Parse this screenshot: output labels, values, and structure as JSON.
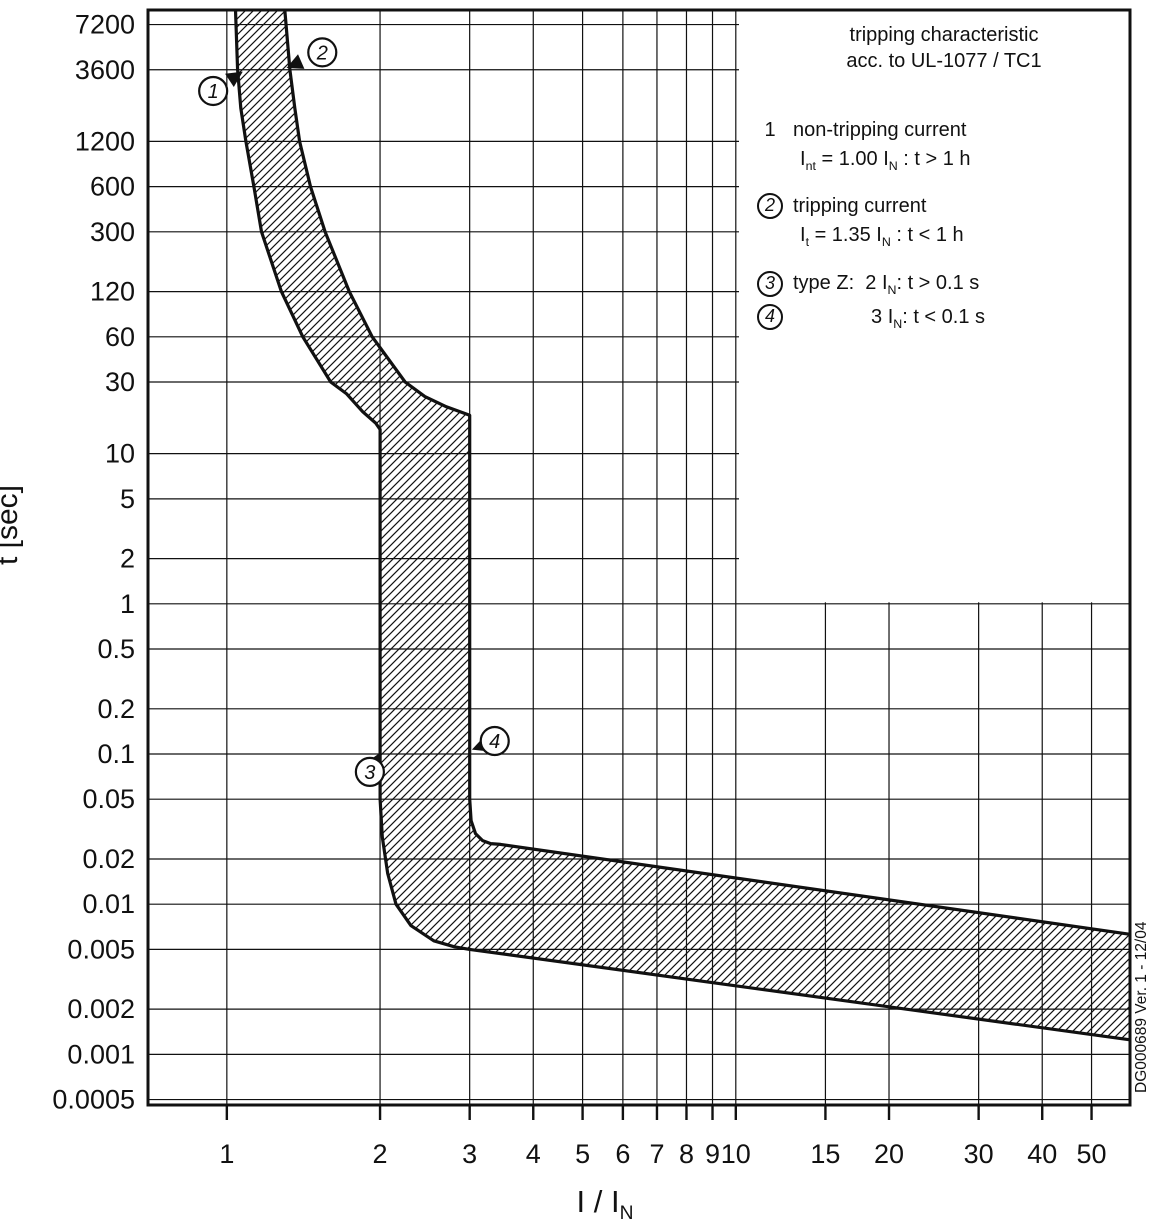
{
  "chart_data": {
    "type": "area",
    "title": "tripping characteristic acc. to UL-1077 / TC1",
    "xlabel": "I / IN",
    "ylabel": "t [sec]",
    "grid": true,
    "x_axis": {
      "scale": "log",
      "range": [
        0.7,
        59.5
      ],
      "label_segments": [
        {
          "t": "I / "
        },
        {
          "t": "I"
        },
        {
          "t": "N",
          "sub": true
        }
      ],
      "ticks": [
        {
          "v": 1,
          "label": "1"
        },
        {
          "v": 2,
          "label": "2"
        },
        {
          "v": 3,
          "label": "3"
        },
        {
          "v": 4,
          "label": "4"
        },
        {
          "v": 5,
          "label": "5"
        },
        {
          "v": 6,
          "label": "6"
        },
        {
          "v": 7,
          "label": "7"
        },
        {
          "v": 8,
          "label": "8"
        },
        {
          "v": 9,
          "label": "9"
        },
        {
          "v": 10,
          "label": "10"
        },
        {
          "v": 15,
          "label": "15"
        },
        {
          "v": 20,
          "label": "20"
        },
        {
          "v": 30,
          "label": "30"
        },
        {
          "v": 40,
          "label": "40"
        },
        {
          "v": 50,
          "label": "50"
        }
      ]
    },
    "y_axis": {
      "scale": "log",
      "range": [
        0.00046,
        9000
      ],
      "label": "t [sec]",
      "ticks": [
        {
          "v": 7200,
          "label": "7200"
        },
        {
          "v": 3600,
          "label": "3600"
        },
        {
          "v": 1200,
          "label": "1200"
        },
        {
          "v": 600,
          "label": "600"
        },
        {
          "v": 300,
          "label": "300"
        },
        {
          "v": 120,
          "label": "120"
        },
        {
          "v": 60,
          "label": "60"
        },
        {
          "v": 30,
          "label": "30"
        },
        {
          "v": 10,
          "label": "10"
        },
        {
          "v": 5,
          "label": "5"
        },
        {
          "v": 2,
          "label": "2"
        },
        {
          "v": 1,
          "label": "1"
        },
        {
          "v": 0.5,
          "label": "0.5"
        },
        {
          "v": 0.2,
          "label": "0.2"
        },
        {
          "v": 0.1,
          "label": "0.1"
        },
        {
          "v": 0.05,
          "label": "0.05"
        },
        {
          "v": 0.02,
          "label": "0.02"
        },
        {
          "v": 0.01,
          "label": "0.01"
        },
        {
          "v": 0.005,
          "label": "0.005"
        },
        {
          "v": 0.002,
          "label": "0.002"
        },
        {
          "v": 0.001,
          "label": "0.001"
        },
        {
          "v": 0.0005,
          "label": "0.0005"
        }
      ]
    },
    "band": {
      "name": "type-Z tripping band",
      "hatch": "diagonal",
      "curve1": {
        "name": "non-tripping boundary (curve 1)",
        "points": [
          [
            1.04,
            9000
          ],
          [
            1.05,
            3600
          ],
          [
            1.065,
            2000
          ],
          [
            1.09,
            1200
          ],
          [
            1.13,
            600
          ],
          [
            1.17,
            300
          ],
          [
            1.28,
            120
          ],
          [
            1.41,
            60
          ],
          [
            1.6,
            30
          ],
          [
            1.72,
            25
          ],
          [
            1.85,
            19
          ],
          [
            1.96,
            16
          ],
          [
            2.0,
            14.5
          ],
          [
            2.0,
            0.05
          ],
          [
            2.02,
            0.028
          ],
          [
            2.07,
            0.016
          ],
          [
            2.15,
            0.01
          ],
          [
            2.3,
            0.0072
          ],
          [
            2.55,
            0.0057
          ],
          [
            2.8,
            0.0052
          ],
          [
            3.0,
            0.005
          ],
          [
            59.5,
            0.00125
          ]
        ]
      },
      "curve2": {
        "name": "tripping boundary (curve 2)",
        "points": [
          [
            1.3,
            9000
          ],
          [
            1.33,
            3600
          ],
          [
            1.36,
            2000
          ],
          [
            1.39,
            1200
          ],
          [
            1.46,
            600
          ],
          [
            1.56,
            300
          ],
          [
            1.74,
            120
          ],
          [
            1.93,
            60
          ],
          [
            2.24,
            30
          ],
          [
            2.45,
            24
          ],
          [
            2.7,
            20.5
          ],
          [
            2.9,
            18.8
          ],
          [
            3.0,
            18
          ],
          [
            3.0,
            0.05
          ],
          [
            3.02,
            0.036
          ],
          [
            3.08,
            0.0295
          ],
          [
            3.18,
            0.0265
          ],
          [
            3.3,
            0.0253
          ],
          [
            3.45,
            0.025
          ],
          [
            59.5,
            0.0063
          ]
        ]
      }
    },
    "markers": [
      {
        "label": "1",
        "x": 0.94,
        "t": 2600,
        "tip_x": 1.075,
        "tip_t": 3500
      },
      {
        "label": "2",
        "x": 1.54,
        "t": 4700,
        "tip_x": 1.31,
        "tip_t": 3700
      },
      {
        "label": "3",
        "x": 1.91,
        "t": 0.076,
        "tip_x": 2.0,
        "tip_t": 0.102
      },
      {
        "label": "4",
        "x": 3.36,
        "t": 0.122,
        "tip_x": 3.03,
        "tip_t": 0.107
      }
    ],
    "legend": {
      "title_lines": [
        "tripping characteristic",
        "acc. to UL-1077 / TC1"
      ],
      "items": [
        {
          "num": "1",
          "circled": false,
          "label_segments": [
            {
              "t": "non-tripping current"
            }
          ],
          "formula_segments": [
            {
              "t": "I"
            },
            {
              "t": "nt",
              "sub": true
            },
            {
              "t": " = 1.00 "
            },
            {
              "t": "I"
            },
            {
              "t": "N",
              "sub": true
            },
            {
              "t": " : t > 1 h"
            }
          ]
        },
        {
          "num": "2",
          "circled": true,
          "label_segments": [
            {
              "t": "tripping current"
            }
          ],
          "formula_segments": [
            {
              "t": "I"
            },
            {
              "t": "t",
              "sub": true
            },
            {
              "t": " = 1.35 "
            },
            {
              "t": "I"
            },
            {
              "t": "N",
              "sub": true
            },
            {
              "t": " : t < 1 h"
            }
          ]
        },
        {
          "num": "3",
          "circled": true,
          "label_segments": [
            {
              "t": "type Z:  2 "
            },
            {
              "t": "I"
            },
            {
              "t": "N",
              "sub": true
            },
            {
              "t": ": t > 0.1 s"
            }
          ]
        },
        {
          "num": "4",
          "circled": true,
          "indent": true,
          "label_segments": [
            {
              "t": "3 "
            },
            {
              "t": "I"
            },
            {
              "t": "N",
              "sub": true
            },
            {
              "t": ": t < 0.1 s"
            }
          ]
        }
      ]
    },
    "watermark": "DG000689  Ver. 1 - 12/04",
    "colors": {
      "ink": "#111111",
      "background": "#ffffff"
    }
  }
}
